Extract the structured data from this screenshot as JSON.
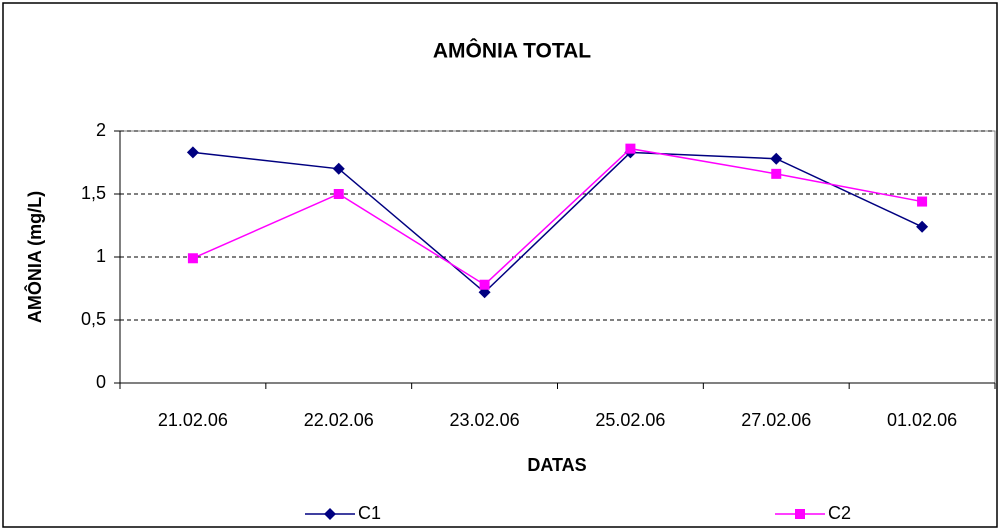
{
  "chart_data": {
    "type": "line",
    "title": "AMÔNIA TOTAL",
    "x_label": "DATAS",
    "y_label": "AMÔNIA (mg/L)",
    "categories": [
      "21.02.06",
      "22.02.06",
      "23.02.06",
      "25.02.06",
      "27.02.06",
      "01.02.06"
    ],
    "series": [
      {
        "name": "C1",
        "color": "#000080",
        "marker": "diamond",
        "values": [
          1.83,
          1.7,
          0.72,
          1.83,
          1.78,
          1.24
        ]
      },
      {
        "name": "C2",
        "color": "#ff00ff",
        "marker": "square",
        "values": [
          0.99,
          1.5,
          0.78,
          1.86,
          1.66,
          1.44
        ]
      }
    ],
    "ylim": [
      0,
      2
    ],
    "yticks": [
      0,
      {
        "value": 0.5,
        "label": "0,5"
      },
      1,
      {
        "value": 1.5,
        "label": "1,5"
      },
      2
    ],
    "grid": true,
    "legend": "bottom"
  }
}
